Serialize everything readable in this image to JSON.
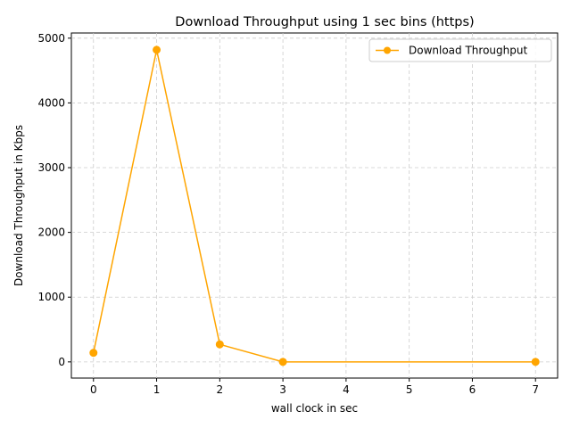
{
  "chart_data": {
    "type": "line",
    "title": "Download Throughput using 1 sec bins (https)",
    "xlabel": "wall clock in sec",
    "ylabel": "Download Throughput in Kbps",
    "xlim": [
      -0.35,
      7.35
    ],
    "ylim": [
      -250,
      5080
    ],
    "xticks": [
      0,
      1,
      2,
      3,
      4,
      5,
      6,
      7
    ],
    "yticks": [
      0,
      1000,
      2000,
      3000,
      4000,
      5000
    ],
    "grid": true,
    "legend_position": "top-right",
    "series": [
      {
        "name": "Download Throughput",
        "color": "#FFA500",
        "marker": "circle",
        "x": [
          0,
          1,
          2,
          3,
          7
        ],
        "y": [
          140,
          4820,
          270,
          0,
          0
        ]
      }
    ]
  }
}
